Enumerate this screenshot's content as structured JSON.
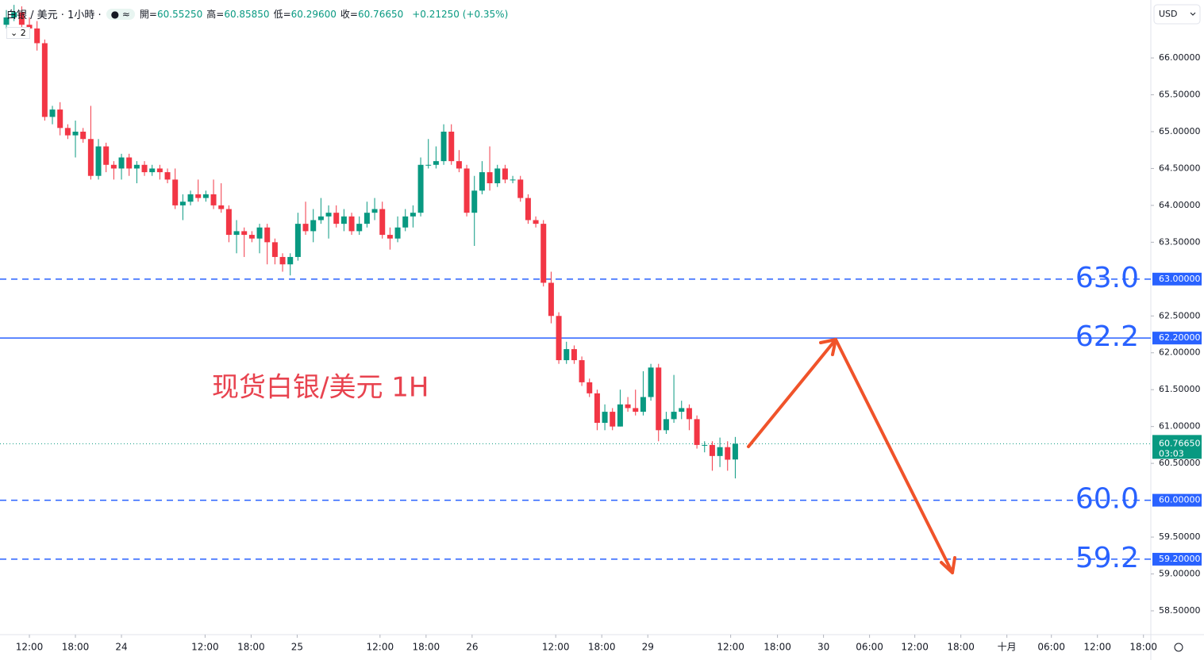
{
  "header": {
    "symbol": "白银 / 美元 · 1小時 ·",
    "badge": "2",
    "legend": [
      {
        "label": "開=",
        "value": "60.55250"
      },
      {
        "label": "高=",
        "value": "60.85850"
      },
      {
        "label": "低=",
        "value": "60.29600"
      },
      {
        "label": "收=",
        "value": "60.76650"
      }
    ],
    "change": "+0.21250 (+0.35%)",
    "currency": "USD"
  },
  "chart_data": {
    "type": "candlestick",
    "annotation": "现货白银/美元 1H",
    "up_color": "#089981",
    "down_color": "#f23645",
    "x": [
      -3,
      -2,
      -1,
      0,
      1,
      2,
      3,
      4,
      5,
      6,
      7,
      8,
      9,
      10,
      11,
      12,
      13,
      14,
      15,
      16,
      17,
      18,
      19,
      20,
      21,
      22,
      23,
      24,
      25,
      26,
      27,
      28,
      29,
      30,
      31,
      32,
      33,
      34,
      35,
      36,
      37,
      38,
      39,
      40,
      41,
      42,
      43,
      44,
      45,
      46,
      47,
      48,
      49,
      50,
      51,
      52,
      53,
      54,
      55,
      56,
      57,
      58,
      59,
      60,
      61,
      62,
      63,
      64,
      65,
      66,
      67,
      68,
      69,
      70,
      71,
      72,
      73,
      74,
      75,
      76,
      77,
      78,
      79,
      80,
      81,
      82,
      83,
      84,
      85,
      86,
      87,
      88,
      89,
      90,
      91,
      92
    ],
    "open": [
      66.45,
      66.55,
      66.62,
      66.45,
      66.4,
      66.2,
      65.2,
      65.3,
      65.05,
      64.95,
      65.0,
      64.9,
      64.4,
      64.8,
      64.55,
      64.5,
      64.65,
      64.5,
      64.55,
      64.45,
      64.5,
      64.45,
      64.35,
      64.0,
      64.05,
      64.15,
      64.1,
      64.15,
      64.0,
      63.95,
      63.6,
      63.65,
      63.6,
      63.55,
      63.7,
      63.5,
      63.3,
      63.2,
      63.3,
      63.75,
      63.65,
      63.8,
      63.85,
      63.9,
      63.75,
      63.85,
      63.65,
      63.75,
      63.9,
      63.95,
      63.6,
      63.55,
      63.7,
      63.85,
      63.9,
      64.55,
      64.55,
      64.6,
      65.0,
      64.6,
      64.5,
      63.9,
      64.2,
      64.45,
      64.3,
      64.5,
      64.35,
      64.35,
      64.1,
      63.8,
      63.75,
      62.95,
      62.5,
      61.9,
      62.05,
      61.9,
      61.6,
      61.45,
      61.05,
      61.2,
      61.0,
      61.3,
      61.25,
      61.2,
      61.4,
      61.8,
      60.95,
      61.1,
      61.2,
      61.25,
      61.1,
      60.75,
      60.75,
      60.6,
      60.72,
      60.5525
    ],
    "high": [
      66.65,
      66.72,
      66.7,
      66.55,
      66.5,
      66.25,
      65.35,
      65.4,
      65.1,
      65.15,
      65.05,
      65.35,
      64.9,
      64.85,
      64.6,
      64.7,
      64.7,
      64.6,
      64.6,
      64.55,
      64.55,
      64.5,
      64.5,
      64.15,
      64.2,
      64.35,
      64.2,
      64.35,
      64.3,
      64.0,
      63.8,
      63.7,
      63.65,
      63.75,
      63.75,
      63.55,
      63.35,
      63.35,
      63.9,
      64.05,
      63.95,
      64.1,
      64.0,
      64.0,
      63.95,
      63.9,
      63.85,
      64.05,
      64.1,
      64.05,
      63.7,
      63.85,
      63.95,
      64.0,
      64.65,
      64.9,
      64.8,
      65.1,
      65.1,
      64.75,
      64.55,
      64.4,
      64.6,
      64.8,
      64.55,
      64.55,
      64.4,
      64.4,
      64.15,
      63.85,
      63.8,
      63.1,
      62.55,
      62.15,
      62.1,
      61.95,
      61.65,
      61.5,
      61.3,
      61.25,
      61.5,
      61.4,
      61.5,
      61.75,
      61.85,
      61.85,
      61.2,
      61.7,
      61.35,
      61.3,
      61.15,
      60.8,
      60.8,
      60.85,
      60.8,
      60.8585
    ],
    "low": [
      66.4,
      66.5,
      66.4,
      66.3,
      66.1,
      65.15,
      65.1,
      64.95,
      64.9,
      64.65,
      64.85,
      64.35,
      64.35,
      64.45,
      64.35,
      64.35,
      64.4,
      64.3,
      64.4,
      64.4,
      64.35,
      64.3,
      63.95,
      63.8,
      64.0,
      64.05,
      64.05,
      63.95,
      63.9,
      63.5,
      63.35,
      63.3,
      63.5,
      63.35,
      63.2,
      63.2,
      63.1,
      63.05,
      63.25,
      63.6,
      63.5,
      63.75,
      63.55,
      63.7,
      63.65,
      63.6,
      63.6,
      63.7,
      63.8,
      63.55,
      63.4,
      63.5,
      63.65,
      63.7,
      63.85,
      64.5,
      64.5,
      64.55,
      64.55,
      64.45,
      63.85,
      63.45,
      64.15,
      64.2,
      64.25,
      64.3,
      64.3,
      64.05,
      63.75,
      63.7,
      62.9,
      62.4,
      61.85,
      61.85,
      61.85,
      61.55,
      61.4,
      60.95,
      60.95,
      60.95,
      61.0,
      61.2,
      61.15,
      61.15,
      61.35,
      60.8,
      60.9,
      61.05,
      61.1,
      60.95,
      60.7,
      60.65,
      60.4,
      60.45,
      60.4,
      60.296
    ],
    "close": [
      66.55,
      66.62,
      66.45,
      66.4,
      66.2,
      65.2,
      65.3,
      65.05,
      64.95,
      65.0,
      64.9,
      64.4,
      64.8,
      64.55,
      64.5,
      64.65,
      64.5,
      64.55,
      64.45,
      64.5,
      64.45,
      64.35,
      64.0,
      64.05,
      64.15,
      64.1,
      64.15,
      64.0,
      63.95,
      63.6,
      63.65,
      63.6,
      63.55,
      63.7,
      63.5,
      63.3,
      63.2,
      63.3,
      63.75,
      63.65,
      63.8,
      63.85,
      63.9,
      63.75,
      63.85,
      63.65,
      63.75,
      63.9,
      63.95,
      63.6,
      63.55,
      63.7,
      63.85,
      63.9,
      64.55,
      64.55,
      64.6,
      65.0,
      64.6,
      64.5,
      63.9,
      64.2,
      64.45,
      64.3,
      64.5,
      64.35,
      64.35,
      64.1,
      63.8,
      63.75,
      62.95,
      62.5,
      61.9,
      62.05,
      61.9,
      61.6,
      61.45,
      61.05,
      61.2,
      61.0,
      61.3,
      61.25,
      61.2,
      61.4,
      61.8,
      60.95,
      61.1,
      61.2,
      61.25,
      61.1,
      60.75,
      60.75,
      60.6,
      60.72,
      60.55,
      60.7665
    ],
    "xlim": [
      -3.83,
      146.16
    ],
    "ylim": [
      58.177,
      66.786
    ],
    "xticks": [
      {
        "value": 0,
        "label": "12:00"
      },
      {
        "value": 6,
        "label": "18:00"
      },
      {
        "value": 12,
        "label": "24"
      },
      {
        "value": 22.9,
        "label": "12:00"
      },
      {
        "value": 28.9,
        "label": "18:00"
      },
      {
        "value": 34.9,
        "label": "25"
      },
      {
        "value": 45.7,
        "label": "12:00"
      },
      {
        "value": 51.7,
        "label": "18:00"
      },
      {
        "value": 57.7,
        "label": "26"
      },
      {
        "value": 68.6,
        "label": "12:00"
      },
      {
        "value": 74.6,
        "label": "18:00"
      },
      {
        "value": 80.6,
        "label": "29"
      },
      {
        "value": 91.4,
        "label": "12:00"
      },
      {
        "value": 97.5,
        "label": "18:00"
      },
      {
        "value": 103.5,
        "label": "30"
      },
      {
        "value": 109.5,
        "label": "06:00"
      },
      {
        "value": 115.4,
        "label": "12:00"
      },
      {
        "value": 121.4,
        "label": "18:00"
      },
      {
        "value": 127.4,
        "label": "十月"
      },
      {
        "value": 133.2,
        "label": "06:00"
      },
      {
        "value": 139.2,
        "label": "12:00"
      },
      {
        "value": 145.2,
        "label": "18:00"
      }
    ],
    "yticks": [
      {
        "value": 66,
        "label": "66.00000"
      },
      {
        "value": 65.5,
        "label": "65.50000"
      },
      {
        "value": 65,
        "label": "65.00000"
      },
      {
        "value": 64.5,
        "label": "64.50000"
      },
      {
        "value": 64,
        "label": "64.00000"
      },
      {
        "value": 63.5,
        "label": "63.50000"
      },
      {
        "value": 62.5,
        "label": "62.50000"
      },
      {
        "value": 62,
        "label": "62.00000"
      },
      {
        "value": 61.5,
        "label": "61.50000"
      },
      {
        "value": 61,
        "label": "61.00000"
      },
      {
        "value": 60.5,
        "label": "60.50000"
      },
      {
        "value": 59.5,
        "label": "59.50000"
      },
      {
        "value": 59,
        "label": "59.00000"
      },
      {
        "value": 58.5,
        "label": "58.50000"
      }
    ],
    "levels": [
      {
        "value": 63.0,
        "label": "63.0",
        "tag": "63.00000",
        "style": "dashed"
      },
      {
        "value": 62.2,
        "label": "62.2",
        "tag": "62.20000",
        "style": "solid"
      },
      {
        "value": 60.0,
        "label": "60.0",
        "tag": "60.00000",
        "style": "dashed"
      },
      {
        "value": 59.2,
        "label": "59.2",
        "tag": "59.20000",
        "style": "dashed"
      }
    ],
    "level_color": "#2962ff",
    "last_price": {
      "value": 60.7665,
      "label": "60.76650",
      "countdown": "03:03"
    }
  }
}
